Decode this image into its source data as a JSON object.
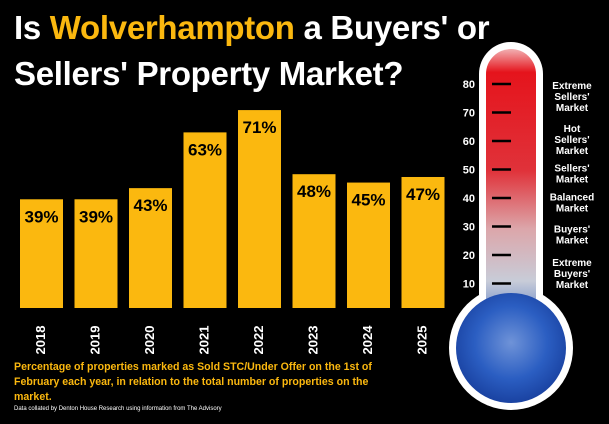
{
  "title": {
    "line1_pre": "Is ",
    "line1_highlight": "Wolverhampton",
    "line1_post": " a Buyers' or",
    "line2": "Sellers' Property Market?"
  },
  "caption": "Percentage of properties marked as Sold STC/Under Offer on the 1st of February each year, in relation to the total number of properties on the market.",
  "source": "Data collated by Denton House Research using information from The Advisory",
  "colors": {
    "bar": "#fbb80f",
    "background": "#000000",
    "thermo_top": "#e5141c",
    "thermo_bottom": "#1e4fb8"
  },
  "chart_data": [
    {
      "type": "bar",
      "categories": [
        "2018",
        "2019",
        "2020",
        "2021",
        "2022",
        "2023",
        "2024",
        "2025"
      ],
      "values": [
        39,
        39,
        43,
        63,
        71,
        48,
        45,
        47
      ],
      "value_labels": [
        "39%",
        "39%",
        "43%",
        "63%",
        "71%",
        "48%",
        "45%",
        "47%"
      ],
      "ylim": [
        0,
        80
      ],
      "grid": false
    },
    {
      "type": "gauge",
      "ticks": [
        "80",
        "70",
        "60",
        "50",
        "40",
        "30",
        "20",
        "10"
      ],
      "tick_values": [
        80,
        70,
        60,
        50,
        40,
        30,
        20,
        10
      ],
      "zones": [
        {
          "lines": [
            "Extreme",
            "Sellers'",
            "Market"
          ]
        },
        {
          "lines": [
            "Hot",
            "Sellers'",
            "Market"
          ]
        },
        {
          "lines": [
            "Sellers'",
            "Market"
          ]
        },
        {
          "lines": [
            "Balanced",
            "Market"
          ]
        },
        {
          "lines": [
            "Buyers'",
            "Market"
          ]
        },
        {
          "lines": [
            "Extreme",
            "Buyers'",
            "Market"
          ]
        }
      ]
    }
  ]
}
